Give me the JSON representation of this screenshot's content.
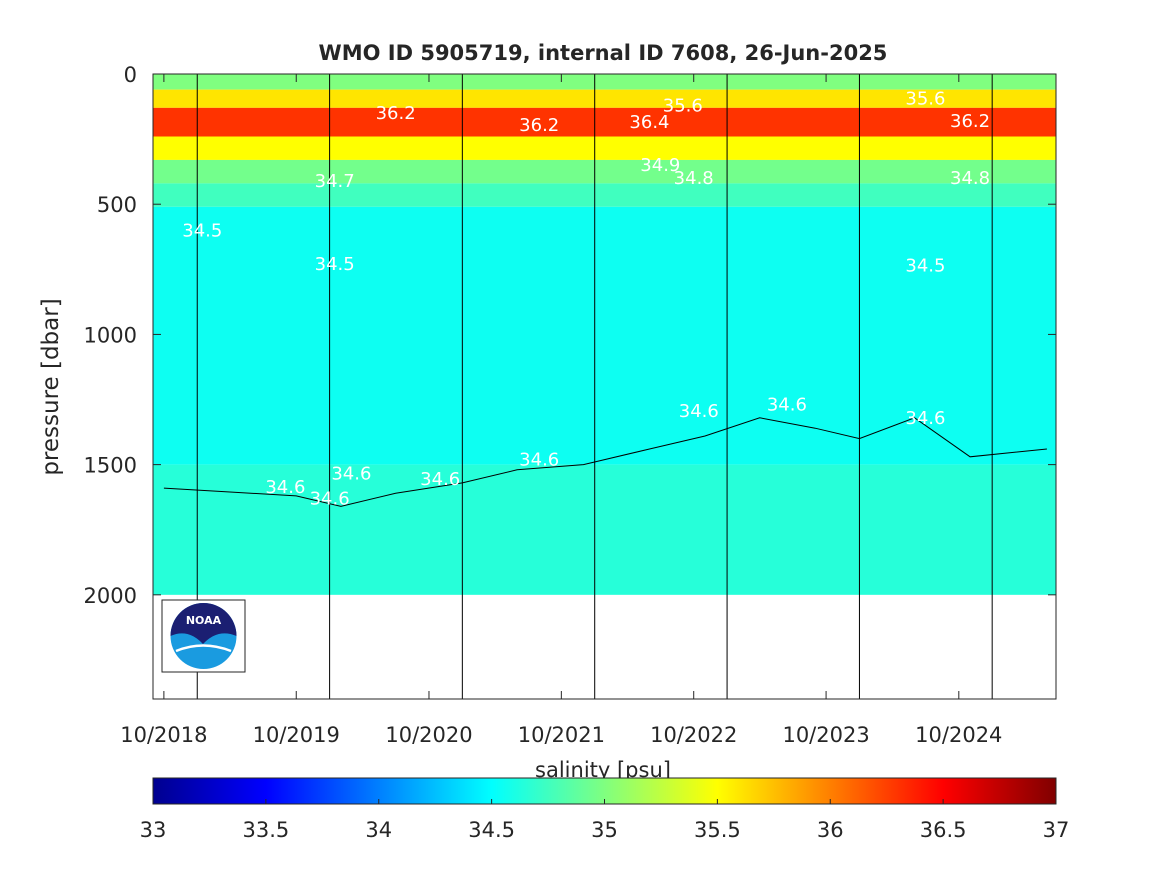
{
  "chart_data": {
    "type": "heatmap",
    "title": "WMO ID 5905719, internal ID 7608, 26-Jun-2025",
    "ylabel": "pressure [dbar]",
    "colorbar_label": "salinity [psu]",
    "y_range": [
      0,
      2400
    ],
    "y_reversed": true,
    "y_ticks": [
      0,
      500,
      1000,
      1500,
      2000
    ],
    "x_range": [
      "2018-09-01",
      "2025-06-26"
    ],
    "x_tick_labels": [
      "10/2018",
      "10/2019",
      "10/2020",
      "10/2021",
      "10/2022",
      "10/2023",
      "10/2024"
    ],
    "x_tick_dates": [
      "2018-10-01",
      "2019-10-01",
      "2020-10-01",
      "2021-10-01",
      "2022-10-01",
      "2023-10-01",
      "2024-10-01"
    ],
    "year_marker_dates": [
      "2019-01-01",
      "2020-01-01",
      "2021-01-01",
      "2022-01-01",
      "2023-01-01",
      "2024-01-01",
      "2025-01-01"
    ],
    "colorbar_range": [
      33,
      37
    ],
    "colorbar_ticks": [
      "33",
      "33.5",
      "34",
      "34.5",
      "35",
      "35.5",
      "36",
      "36.5",
      "37"
    ],
    "colormap": "jet",
    "max_sampled_pressure": 2000,
    "salinity_layers": [
      {
        "top": 0,
        "bottom": 60,
        "salinity": 35.0
      },
      {
        "top": 60,
        "bottom": 130,
        "salinity": 35.6
      },
      {
        "top": 130,
        "bottom": 240,
        "salinity": 36.3
      },
      {
        "top": 240,
        "bottom": 330,
        "salinity": 35.5
      },
      {
        "top": 330,
        "bottom": 420,
        "salinity": 34.95
      },
      {
        "top": 420,
        "bottom": 510,
        "salinity": 34.75
      },
      {
        "top": 510,
        "bottom": 1500,
        "salinity": 34.55
      },
      {
        "top": 1500,
        "bottom": 2000,
        "salinity": 34.65
      }
    ],
    "contour_34_6_depth": [
      {
        "date": "2018-10-01",
        "pressure": 1590
      },
      {
        "date": "2019-04-01",
        "pressure": 1605
      },
      {
        "date": "2019-10-01",
        "pressure": 1620
      },
      {
        "date": "2020-02-01",
        "pressure": 1660
      },
      {
        "date": "2020-07-01",
        "pressure": 1610
      },
      {
        "date": "2021-01-01",
        "pressure": 1570
      },
      {
        "date": "2021-06-01",
        "pressure": 1520
      },
      {
        "date": "2021-12-01",
        "pressure": 1500
      },
      {
        "date": "2022-06-01",
        "pressure": 1440
      },
      {
        "date": "2022-11-01",
        "pressure": 1390
      },
      {
        "date": "2023-04-01",
        "pressure": 1320
      },
      {
        "date": "2023-09-01",
        "pressure": 1360
      },
      {
        "date": "2024-01-01",
        "pressure": 1400
      },
      {
        "date": "2024-06-01",
        "pressure": 1320
      },
      {
        "date": "2024-11-01",
        "pressure": 1470
      },
      {
        "date": "2025-06-01",
        "pressure": 1440
      }
    ],
    "contour_labels": [
      {
        "text": "34.5",
        "date": "2019-01-15",
        "pressure": 600
      },
      {
        "text": "34.5",
        "date": "2020-01-15",
        "pressure": 730
      },
      {
        "text": "34.5",
        "date": "2024-07-01",
        "pressure": 735
      },
      {
        "text": "34.7",
        "date": "2020-01-15",
        "pressure": 410
      },
      {
        "text": "34.8",
        "date": "2022-10-01",
        "pressure": 400
      },
      {
        "text": "34.9",
        "date": "2022-07-01",
        "pressure": 350
      },
      {
        "text": "34.8",
        "date": "2024-11-01",
        "pressure": 400
      },
      {
        "text": "36.2",
        "date": "2020-07-01",
        "pressure": 150
      },
      {
        "text": "36.2",
        "date": "2021-08-01",
        "pressure": 195
      },
      {
        "text": "36.4",
        "date": "2022-06-01",
        "pressure": 185
      },
      {
        "text": "35.6",
        "date": "2022-09-01",
        "pressure": 120
      },
      {
        "text": "35.6",
        "date": "2024-07-01",
        "pressure": 95
      },
      {
        "text": "36.2",
        "date": "2024-11-01",
        "pressure": 180
      },
      {
        "text": "34.6",
        "date": "2022-10-15",
        "pressure": 1295
      },
      {
        "text": "34.6",
        "date": "2023-06-15",
        "pressure": 1270
      },
      {
        "text": "34.6",
        "date": "2024-07-01",
        "pressure": 1320
      },
      {
        "text": "34.6",
        "date": "2021-08-01",
        "pressure": 1480
      },
      {
        "text": "34.6",
        "date": "2020-11-01",
        "pressure": 1555
      },
      {
        "text": "34.6",
        "date": "2020-03-01",
        "pressure": 1535
      },
      {
        "text": "34.6",
        "date": "2019-09-01",
        "pressure": 1585
      },
      {
        "text": "34.6",
        "date": "2020-01-01",
        "pressure": 1630
      }
    ]
  }
}
